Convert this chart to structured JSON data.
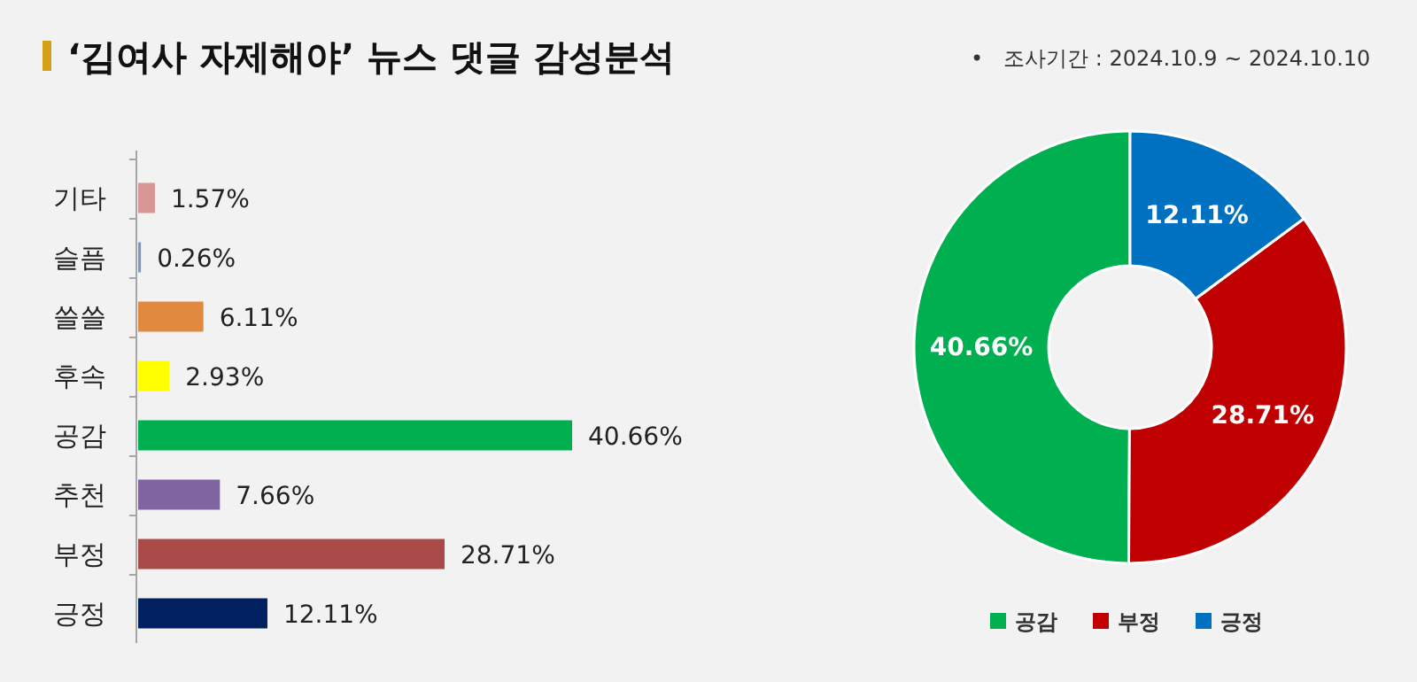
{
  "chart_data": [
    {
      "type": "bar",
      "orientation": "horizontal",
      "title": "‘김여사 자제해야’ 뉴스 댓글 감성분석",
      "categories": [
        "기타",
        "슬픔",
        "쓸쓸",
        "후속",
        "공감",
        "추천",
        "부정",
        "긍정"
      ],
      "values": [
        1.57,
        0.26,
        6.11,
        2.93,
        40.66,
        7.66,
        28.71,
        12.11
      ],
      "colors": [
        "#d99694",
        "#8497b0",
        "#e0893f",
        "#ffff00",
        "#00b050",
        "#8064a2",
        "#aa4a48",
        "#002060"
      ],
      "value_labels": [
        "1.57%",
        "0.26%",
        "6.11%",
        "2.93%",
        "40.66%",
        "7.66%",
        "28.71%",
        "12.11%"
      ]
    },
    {
      "type": "donut",
      "subtitle": "•   조사기간 : 2024.10.9 ~ 2024.10.10",
      "categories": [
        "공감",
        "부정",
        "긍정"
      ],
      "values": [
        40.66,
        28.71,
        12.11
      ],
      "colors": [
        "#00b050",
        "#c00000",
        "#0070c0"
      ],
      "value_labels": [
        "40.66%",
        "28.71%",
        "12.11%"
      ],
      "legend": "bottom"
    }
  ]
}
